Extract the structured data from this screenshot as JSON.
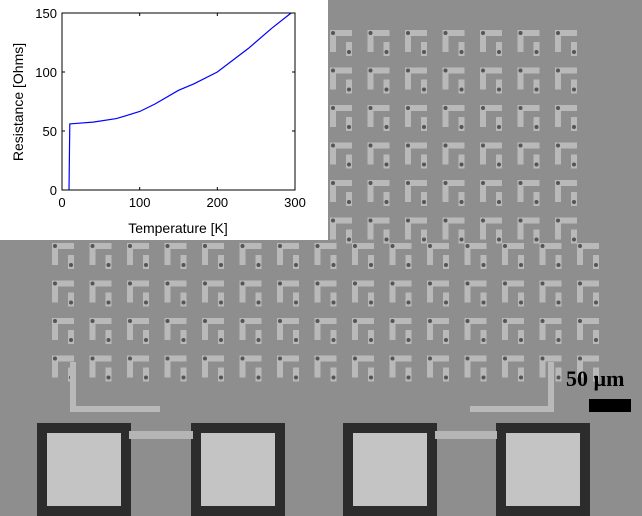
{
  "scale_bar": {
    "label": "50 µm"
  },
  "colors": {
    "line": "#0000ff",
    "substrate": "#8e8e8e",
    "pad": "#c4c4c4",
    "pad_border": "#2c2c2c"
  },
  "chart_data": {
    "type": "line",
    "title": "",
    "xlabel": "Temperature [K]",
    "ylabel": "Resistance [Ohms]",
    "xlim": [
      0,
      300
    ],
    "ylim": [
      0,
      150
    ],
    "xticks": [
      0,
      100,
      200,
      300
    ],
    "yticks": [
      0,
      50,
      100,
      150
    ],
    "grid": false,
    "series": [
      {
        "x": [
          9,
          10,
          20,
          40,
          70,
          100,
          120,
          150,
          170,
          200,
          240,
          270,
          295
        ],
        "y": [
          0,
          56,
          56.5,
          57.5,
          60.5,
          66.5,
          73,
          84.5,
          90,
          100,
          120,
          137,
          150
        ]
      }
    ]
  }
}
